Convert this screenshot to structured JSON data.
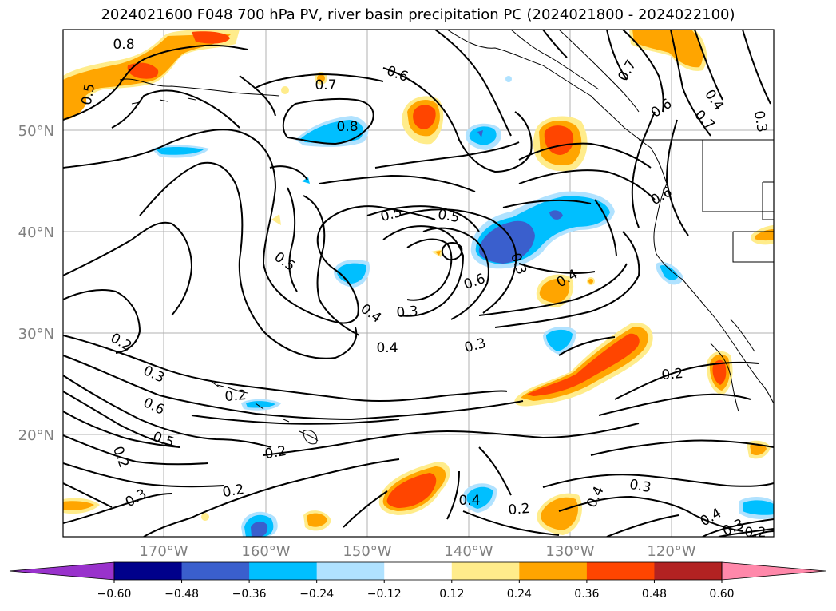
{
  "title": "2024021600 F048 700 hPa PV, river basin precipitation PC (2024021800 - 2024022100)",
  "map": {
    "lat_labels": [
      "50°N",
      "40°N",
      "30°N",
      "20°N"
    ],
    "lon_labels": [
      "170°W",
      "160°W",
      "150°W",
      "140°W",
      "130°W",
      "120°W"
    ],
    "contour_labels": [
      "0.8",
      "0.5",
      "0.7",
      "0.6",
      "0.8",
      "0.7",
      "0.6",
      "0.4",
      "0.5",
      "0.3",
      "0.5",
      "0.5",
      "0.6",
      "0.7",
      "0.6",
      "0.3",
      "0.2",
      "0.4",
      "0.3",
      "0.4",
      "0.3",
      "0.2",
      "0.3",
      "0.6",
      "0.5",
      "0.2",
      "0.2",
      "0.4",
      "0.2",
      "0.3",
      "0.4",
      "0.2",
      "0.2",
      "0.4",
      "0.3",
      "0.3",
      "0.2",
      "0.4"
    ],
    "gridlines": true,
    "coastlines": true
  },
  "colorbar": {
    "ticks": [
      "−0.60",
      "−0.48",
      "−0.36",
      "−0.24",
      "−0.12",
      "0.12",
      "0.24",
      "0.36",
      "0.48",
      "0.60"
    ],
    "colors": [
      "#9932cc",
      "#00008b",
      "#3a5fcd",
      "#00bfff",
      "#b0e2ff",
      "#ffffff",
      "#ffec8b",
      "#ffa500",
      "#ff4500",
      "#b22222",
      "#ff88aa"
    ],
    "extend": "both"
  }
}
